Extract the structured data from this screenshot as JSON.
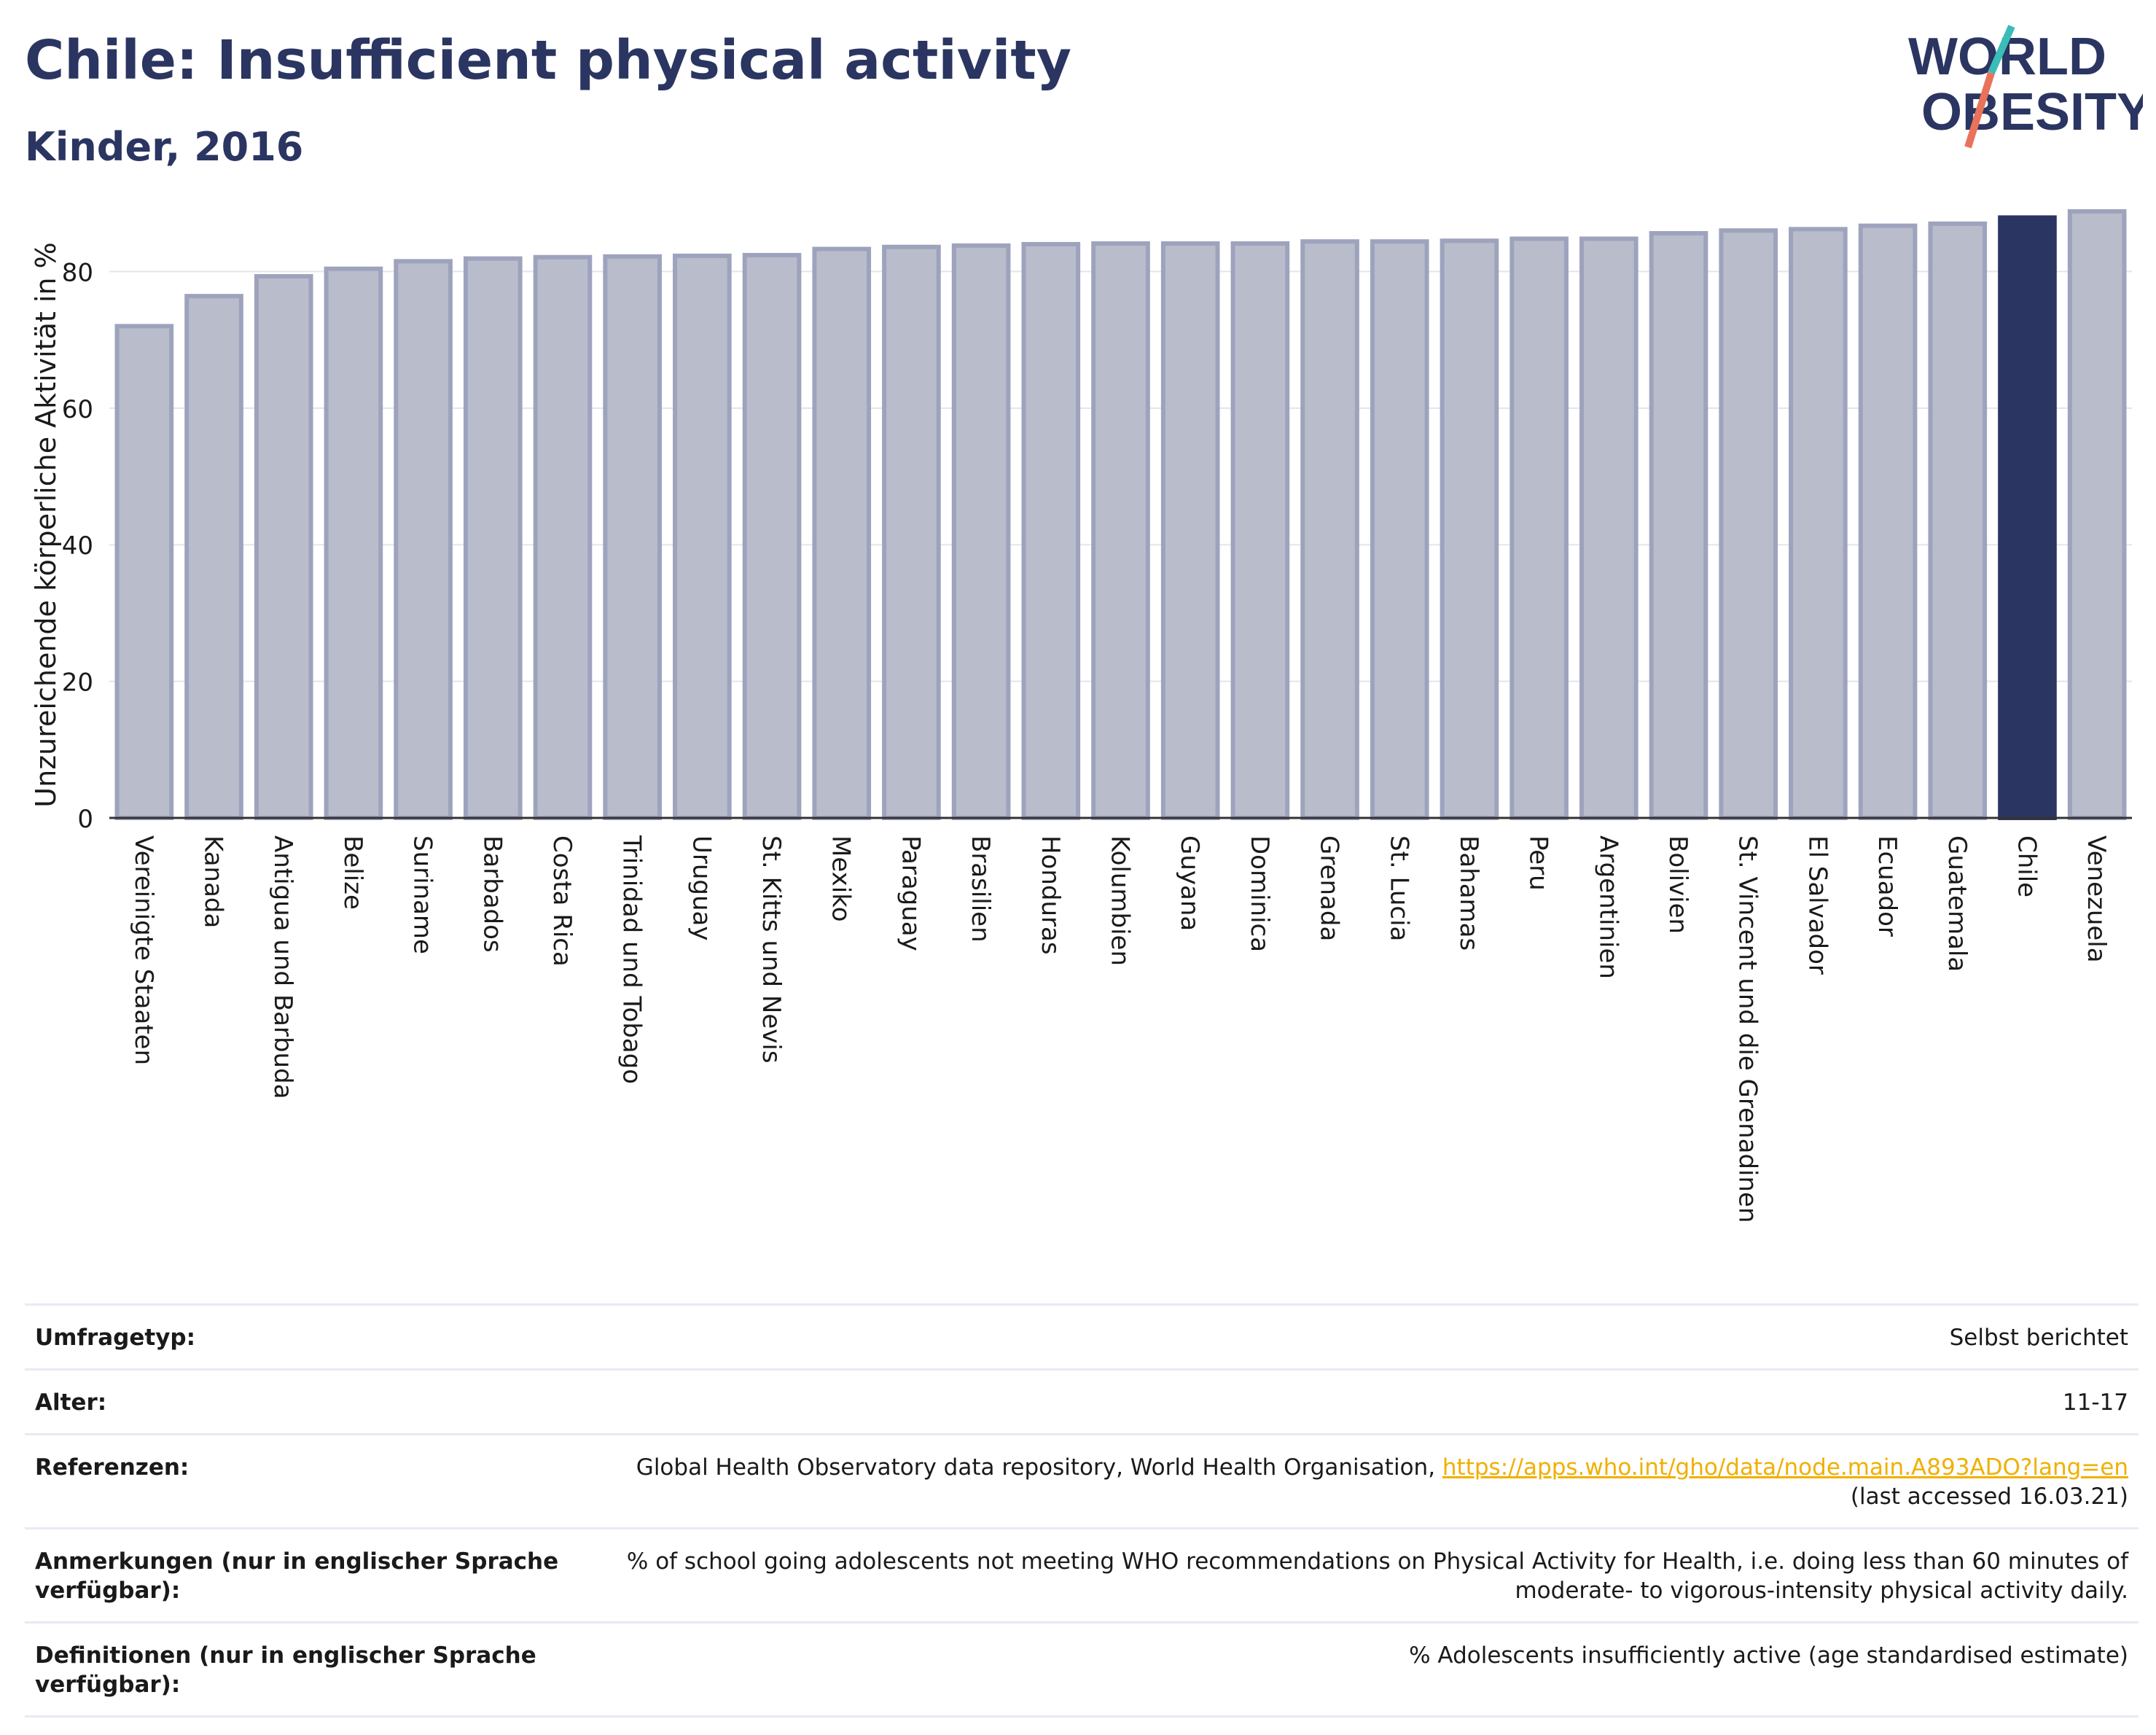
{
  "header": {
    "title": "Chile: Insufficient physical activity",
    "subtitle": "Kinder, 2016"
  },
  "logo": {
    "line1": "WORLD",
    "line2": "OBESITY"
  },
  "colors": {
    "brand": "#2b3561",
    "bar_default": "#b9bccb",
    "bar_border": "#9ea3bd",
    "bar_highlight": "#2b3561",
    "accent_teal": "#3bbcb8",
    "accent_coral": "#e8735a",
    "link": "#f0b000"
  },
  "chart_data": {
    "type": "bar",
    "title": "Chile: Insufficient physical activity",
    "subtitle": "Kinder, 2016",
    "xlabel": "",
    "ylabel": "Unzureichende körperliche Aktivität in %",
    "ylim": [
      0,
      92
    ],
    "yticks": [
      0,
      20,
      40,
      60,
      80
    ],
    "grid": true,
    "highlight": "Chile",
    "categories": [
      "Vereinigte Staaten",
      "Kanada",
      "Antigua und Barbuda",
      "Belize",
      "Suriname",
      "Barbados",
      "Costa Rica",
      "Trinidad und Tobago",
      "Uruguay",
      "St. Kitts und Nevis",
      "Mexiko",
      "Paraguay",
      "Brasilien",
      "Honduras",
      "Kolumbien",
      "Guyana",
      "Dominica",
      "Grenada",
      "St. Lucia",
      "Bahamas",
      "Peru",
      "Argentinien",
      "Bolivien",
      "St. Vincent und die Grenadinen",
      "El Salvador",
      "Ecuador",
      "Guatemala",
      "Chile",
      "Venezuela"
    ],
    "values": [
      72.0,
      76.4,
      79.3,
      80.4,
      81.5,
      81.9,
      82.1,
      82.2,
      82.3,
      82.4,
      83.3,
      83.6,
      83.8,
      84.0,
      84.1,
      84.1,
      84.1,
      84.4,
      84.4,
      84.5,
      84.8,
      84.8,
      85.6,
      86.0,
      86.2,
      86.7,
      87.0,
      87.9,
      88.8
    ]
  },
  "info": {
    "survey_label": "Umfragetyp:",
    "survey_value": "Selbst berichtet",
    "age_label": "Alter:",
    "age_value": "11-17",
    "ref_label": "Referenzen:",
    "ref_text": "Global Health Observatory data repository, World Health Organisation,",
    "ref_link": "https://apps.who.int/gho/data/node.main.A893ADO?lang=en",
    "ref_accessed": "(last accessed 16.03.21)",
    "notes_label": "Anmerkungen (nur in englischer Sprache verfügbar):",
    "notes_value": "% of school going adolescents not meeting WHO recommendations on Physical Activity for Health, i.e. doing less than 60 minutes of moderate- to vigorous-intensity physical activity daily.",
    "def_label": "Definitionen (nur in englischer Sprache verfügbar):",
    "def_value": "% Adolescents insufficiently active (age standardised estimate)"
  }
}
